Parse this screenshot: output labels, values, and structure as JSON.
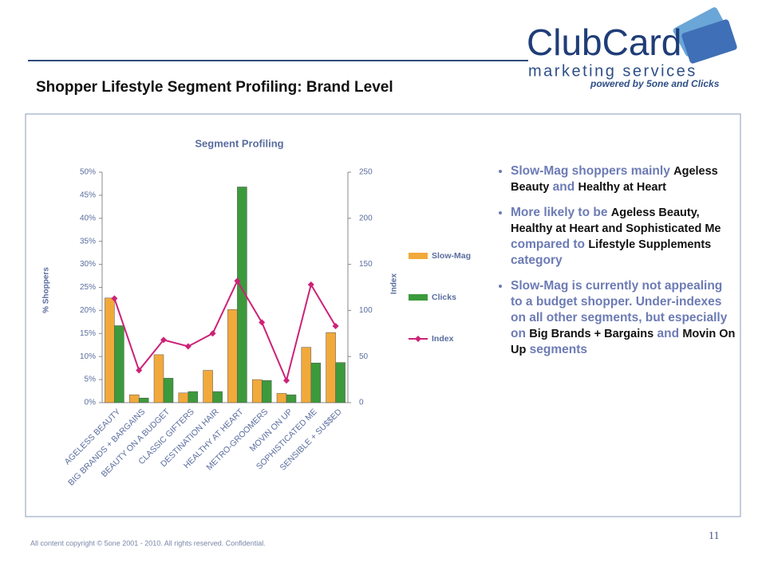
{
  "header": {
    "title": "Shopper Lifestyle Segment Profiling: Brand Level"
  },
  "logo": {
    "brand": "ClubCard",
    "line1": "marketing services",
    "line2": "powered by 5one and Clicks"
  },
  "chart_data": {
    "type": "bar_line",
    "title": "Segment Profiling",
    "y_label": "% Shoppers",
    "y2_label": "Index",
    "categories": [
      "AGELESS BEAUTY",
      "BIG BRANDS + BARGAINS",
      "BEAUTY ON A BUDGET",
      "CLASSIC GIFTERS",
      "DESTINATION HAIR",
      "HEALTHY AT HEART",
      "METRO-GROOMERS",
      "MOVIN  ON UP",
      "SOPHISTICATED ME",
      "SENSIBLE + SU$$ED"
    ],
    "series": [
      {
        "name": "Slow-Mag",
        "type": "bar",
        "color": "#f2a93b",
        "values": [
          22.7,
          1.7,
          10.4,
          2.1,
          7.0,
          20.2,
          5.0,
          2.0,
          12.0,
          15.2
        ]
      },
      {
        "name": "Clicks",
        "type": "bar",
        "color": "#3c9a3c",
        "values": [
          16.7,
          1.0,
          5.3,
          2.4,
          2.4,
          46.8,
          4.8,
          1.7,
          8.6,
          8.7
        ]
      },
      {
        "name": "Index",
        "type": "line",
        "axis": "y2",
        "color": "#cc2277",
        "values": [
          113,
          35,
          68,
          61,
          75,
          132,
          87,
          24,
          128,
          83
        ]
      }
    ],
    "ylim": [
      0,
      50
    ],
    "yticks": [
      {
        "value": 0,
        "label": "0%"
      },
      {
        "value": 5,
        "label": "5%"
      },
      {
        "value": 10,
        "label": "10%"
      },
      {
        "value": 15,
        "label": "15%"
      },
      {
        "value": 20,
        "label": "20%"
      },
      {
        "value": 25,
        "label": "25%"
      },
      {
        "value": 30,
        "label": "30%"
      },
      {
        "value": 35,
        "label": "35%"
      },
      {
        "value": 40,
        "label": "40%"
      },
      {
        "value": 45,
        "label": "45%"
      },
      {
        "value": 50,
        "label": "50%"
      }
    ],
    "y2lim": [
      0,
      250
    ],
    "y2ticks": [
      0,
      50,
      100,
      150,
      200,
      250
    ],
    "legend": "right"
  },
  "bullets": [
    [
      {
        "text": "Slow-Mag shoppers mainly ",
        "dark": false
      },
      {
        "text": "Ageless Beauty",
        "dark": true
      },
      {
        "text": " and ",
        "dark": false
      },
      {
        "text": "Healthy at Heart",
        "dark": true
      }
    ],
    [
      {
        "text": "More likely to  be ",
        "dark": false
      },
      {
        "text": "Ageless Beauty, Healthy at Heart and Sophisticated Me",
        "dark": true
      },
      {
        "text": " compared to ",
        "dark": false
      },
      {
        "text": "Lifestyle Supplements",
        "dark": true
      },
      {
        "text": " category",
        "dark": false
      }
    ],
    [
      {
        "text": "Slow-Mag is currently not appealing to a budget shopper. Under-indexes on all other segments, but especially on ",
        "dark": false
      },
      {
        "text": "Big Brands + Bargains",
        "dark": true
      },
      {
        "text": " and ",
        "dark": false
      },
      {
        "text": "Movin On Up",
        "dark": true
      },
      {
        "text": " segments",
        "dark": false
      }
    ]
  ],
  "footer": {
    "copyright": "All content copyright © 5one 2001 - 2010. All rights reserved. Confidential.",
    "page": "11"
  }
}
